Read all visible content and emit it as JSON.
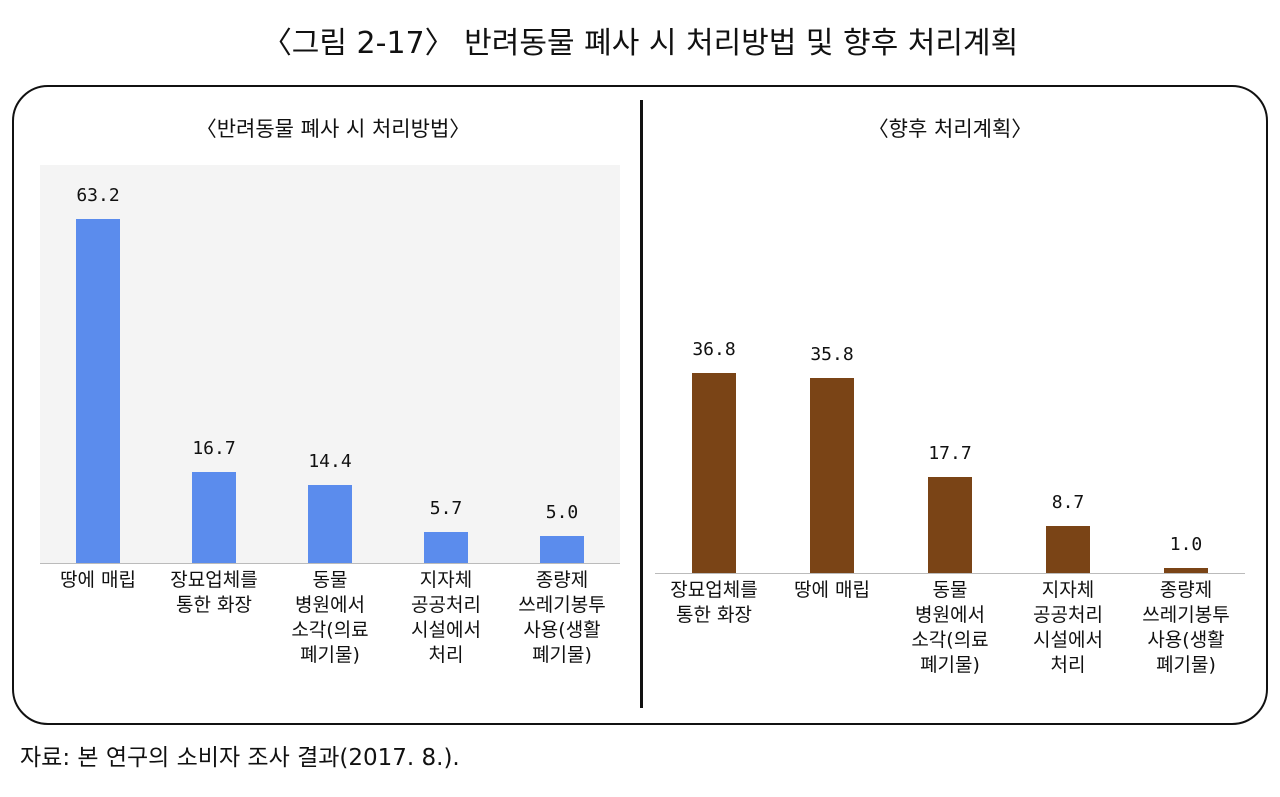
{
  "title": "〈그림 2-17〉 반려동물 폐사 시 처리방법 및 향후 처리계획",
  "source": "자료: 본 연구의 소비자 조사 결과(2017. 8.).",
  "chart_data": [
    {
      "type": "bar",
      "title": "〈반려동물 폐사 시 처리방법〉",
      "categories": [
        "땅에 매립",
        "장묘업체를\n통한 화장",
        "동물\n병원에서\n소각(의료\n폐기물)",
        "지자체\n공공처리\n시설에서\n처리",
        "종량제\n쓰레기봉투\n사용(생활\n폐기물)"
      ],
      "values": [
        63.2,
        16.7,
        14.4,
        5.7,
        5.0
      ],
      "value_labels": [
        "63.2",
        "16.7",
        "14.4",
        "5.7",
        "5.0"
      ],
      "color": "#5b8ced",
      "ylim": [
        0,
        70
      ]
    },
    {
      "type": "bar",
      "title": "〈향후 처리계획〉",
      "categories": [
        "장묘업체를\n통한 화장",
        "땅에 매립",
        "동물\n병원에서\n소각(의료\n폐기물)",
        "지자체\n공공처리\n시설에서\n처리",
        "종량제\n쓰레기봉투\n사용(생활\n폐기물)"
      ],
      "values": [
        36.8,
        35.8,
        17.7,
        8.7,
        1.0
      ],
      "value_labels": [
        "36.8",
        "35.8",
        "17.7",
        "8.7",
        "1.0"
      ],
      "color": "#7a4416",
      "ylim": [
        0,
        70
      ]
    }
  ]
}
